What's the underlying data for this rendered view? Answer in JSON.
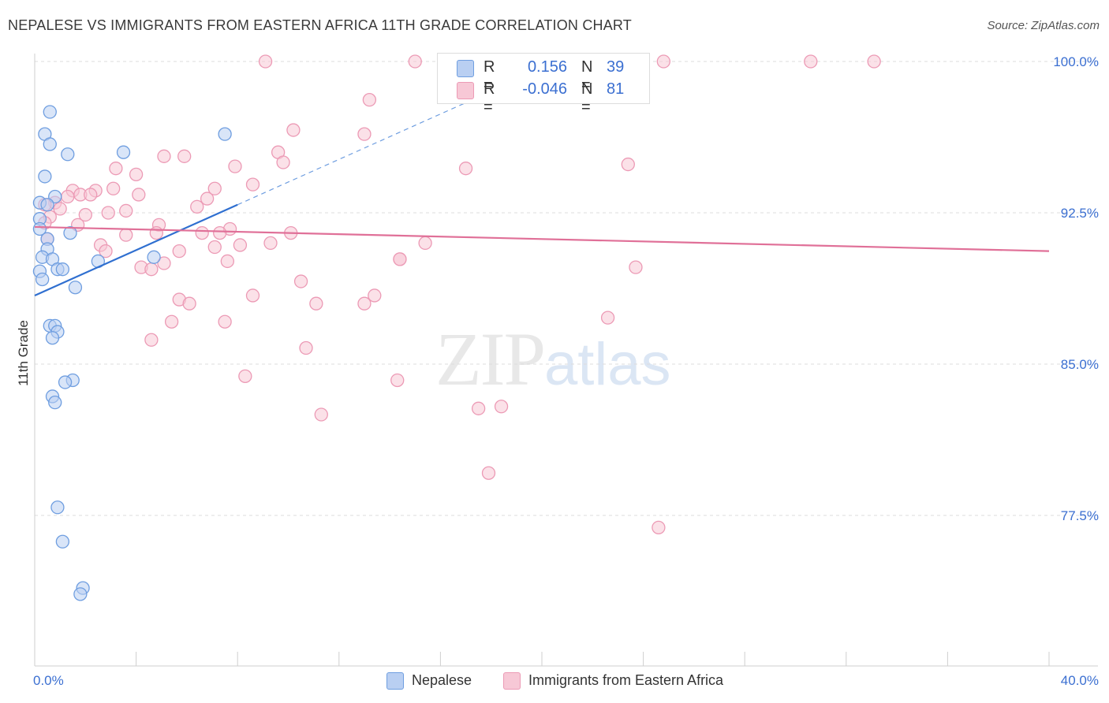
{
  "title": "NEPALESE VS IMMIGRANTS FROM EASTERN AFRICA 11TH GRADE CORRELATION CHART",
  "source": "Source: ZipAtlas.com",
  "watermark": {
    "zip": "ZIP",
    "atlas": "atlas"
  },
  "legend": {
    "rows": [
      {
        "r_label": "R =",
        "r_value": "0.156",
        "n_label": "N =",
        "n_value": "39"
      },
      {
        "r_label": "R =",
        "r_value": "-0.046",
        "n_label": "N =",
        "n_value": "81"
      }
    ]
  },
  "colors": {
    "blue_fill": "#b9cff2",
    "blue_stroke": "#6f9ee0",
    "blue_line": "#2f6fd0",
    "pink_fill": "#f7c8d6",
    "pink_stroke": "#ec9ab5",
    "pink_line": "#e07098",
    "axis_text": "#3b6fd1",
    "grid": "#dcdcdc"
  },
  "chart_data": {
    "type": "scatter",
    "xlabel": "",
    "ylabel": "11th Grade",
    "xlim": [
      0,
      40
    ],
    "ylim": [
      71,
      100.8
    ],
    "x_tick_labels": [
      "0.0%",
      "40.0%"
    ],
    "y_ticks": [
      77.5,
      85.0,
      92.5,
      100.0
    ],
    "y_tick_labels": [
      "77.5%",
      "85.0%",
      "92.5%",
      "100.0%"
    ],
    "grid": "horizontal dashed",
    "legend_position": "top-center",
    "series": [
      {
        "name": "Nepalese",
        "color": "blue",
        "points": [
          [
            0.6,
            97.5
          ],
          [
            0.4,
            96.4
          ],
          [
            0.6,
            95.9
          ],
          [
            1.3,
            95.4
          ],
          [
            3.5,
            95.5
          ],
          [
            7.5,
            96.4
          ],
          [
            0.4,
            94.3
          ],
          [
            0.2,
            93.0
          ],
          [
            0.8,
            93.3
          ],
          [
            0.5,
            92.9
          ],
          [
            0.2,
            92.2
          ],
          [
            0.2,
            91.7
          ],
          [
            1.4,
            91.5
          ],
          [
            0.5,
            91.2
          ],
          [
            0.5,
            90.7
          ],
          [
            0.3,
            90.3
          ],
          [
            0.7,
            90.2
          ],
          [
            2.5,
            90.1
          ],
          [
            4.7,
            90.3
          ],
          [
            0.2,
            89.6
          ],
          [
            0.3,
            89.2
          ],
          [
            0.9,
            89.7
          ],
          [
            1.1,
            89.7
          ],
          [
            1.6,
            88.8
          ],
          [
            0.6,
            86.9
          ],
          [
            0.8,
            86.9
          ],
          [
            0.9,
            86.6
          ],
          [
            0.7,
            86.3
          ],
          [
            1.5,
            84.2
          ],
          [
            1.2,
            84.1
          ],
          [
            0.7,
            83.4
          ],
          [
            0.8,
            83.1
          ],
          [
            0.9,
            77.9
          ],
          [
            1.1,
            76.2
          ],
          [
            1.9,
            73.9
          ],
          [
            1.8,
            73.6
          ]
        ],
        "trend": {
          "x": [
            0.0,
            8.0
          ],
          "y": [
            88.4,
            92.9
          ]
        },
        "trend_dashed": {
          "x": [
            8.0,
            18.5
          ],
          "y": [
            92.9,
            98.8
          ]
        }
      },
      {
        "name": "Immigrants from Eastern Africa",
        "color": "pink",
        "points": [
          [
            9.1,
            100.0
          ],
          [
            15.0,
            100.0
          ],
          [
            24.8,
            100.0
          ],
          [
            30.6,
            100.0
          ],
          [
            33.1,
            100.0
          ],
          [
            13.2,
            98.1
          ],
          [
            10.2,
            96.6
          ],
          [
            13.0,
            96.4
          ],
          [
            9.6,
            95.5
          ],
          [
            5.1,
            95.3
          ],
          [
            5.9,
            95.3
          ],
          [
            9.8,
            95.0
          ],
          [
            17.0,
            94.7
          ],
          [
            23.4,
            94.9
          ],
          [
            3.2,
            94.7
          ],
          [
            7.9,
            94.8
          ],
          [
            4.0,
            94.4
          ],
          [
            8.6,
            93.9
          ],
          [
            1.5,
            93.6
          ],
          [
            2.4,
            93.6
          ],
          [
            3.1,
            93.7
          ],
          [
            7.1,
            93.7
          ],
          [
            0.8,
            93.0
          ],
          [
            1.8,
            93.4
          ],
          [
            2.2,
            93.4
          ],
          [
            4.1,
            93.4
          ],
          [
            6.8,
            93.2
          ],
          [
            0.4,
            92.9
          ],
          [
            1.0,
            92.7
          ],
          [
            2.0,
            92.4
          ],
          [
            3.6,
            92.6
          ],
          [
            6.4,
            92.8
          ],
          [
            0.6,
            92.3
          ],
          [
            1.3,
            93.3
          ],
          [
            0.4,
            92.0
          ],
          [
            4.9,
            91.9
          ],
          [
            1.7,
            91.9
          ],
          [
            7.7,
            91.7
          ],
          [
            2.9,
            92.5
          ],
          [
            3.6,
            91.4
          ],
          [
            4.8,
            91.5
          ],
          [
            6.6,
            91.5
          ],
          [
            7.3,
            91.5
          ],
          [
            10.1,
            91.5
          ],
          [
            0.5,
            91.2
          ],
          [
            2.6,
            90.9
          ],
          [
            2.8,
            90.6
          ],
          [
            5.7,
            90.6
          ],
          [
            7.1,
            90.8
          ],
          [
            8.1,
            90.9
          ],
          [
            9.3,
            91.0
          ],
          [
            15.4,
            91.0
          ],
          [
            14.4,
            90.2
          ],
          [
            7.6,
            90.1
          ],
          [
            5.1,
            90.0
          ],
          [
            4.2,
            89.8
          ],
          [
            4.6,
            89.7
          ],
          [
            14.4,
            90.2
          ],
          [
            23.7,
            89.8
          ],
          [
            10.5,
            89.1
          ],
          [
            8.6,
            88.4
          ],
          [
            11.1,
            88.0
          ],
          [
            5.7,
            88.2
          ],
          [
            6.1,
            88.0
          ],
          [
            13.0,
            88.0
          ],
          [
            13.4,
            88.4
          ],
          [
            22.6,
            87.3
          ],
          [
            5.4,
            87.1
          ],
          [
            7.5,
            87.1
          ],
          [
            4.6,
            86.2
          ],
          [
            10.7,
            85.8
          ],
          [
            8.3,
            84.4
          ],
          [
            14.3,
            84.2
          ],
          [
            17.5,
            82.8
          ],
          [
            18.4,
            82.9
          ],
          [
            11.3,
            82.5
          ],
          [
            17.9,
            79.6
          ],
          [
            24.6,
            76.9
          ]
        ],
        "trend": {
          "x": [
            0.0,
            40.0
          ],
          "y": [
            91.8,
            90.6
          ]
        }
      }
    ]
  },
  "bottom_legend": [
    "Nepalese",
    "Immigrants from Eastern Africa"
  ]
}
